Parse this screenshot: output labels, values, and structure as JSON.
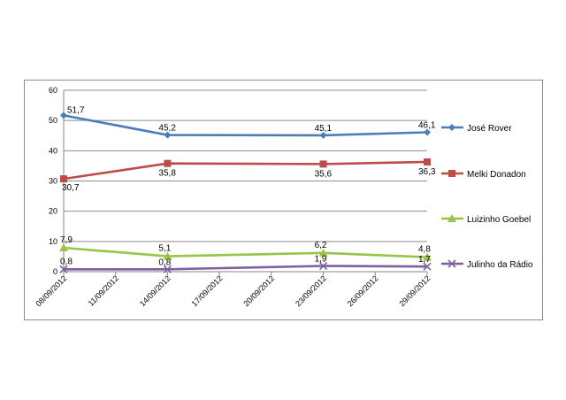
{
  "chart_data": {
    "type": "line",
    "title": "",
    "xlabel": "",
    "ylabel": "",
    "ylim": [
      0,
      60
    ],
    "yticks": [
      0,
      10,
      20,
      30,
      40,
      50,
      60
    ],
    "grid": true,
    "legend_position": "right",
    "x_tick_labels": [
      "08/09/2012",
      "11/09/2012",
      "14/09/2012",
      "17/09/2012",
      "20/09/2012",
      "23/09/2012",
      "26/09/2012",
      "29/09/2012"
    ],
    "series": [
      {
        "name": "José Rover",
        "color": "#4a7ebb",
        "marker": "diamond",
        "points": [
          {
            "x": "08/09/2012",
            "y": 51.7,
            "label": "51,7"
          },
          {
            "x": "14/09/2012",
            "y": 45.2,
            "label": "45,2"
          },
          {
            "x": "23/09/2012",
            "y": 45.1,
            "label": "45,1"
          },
          {
            "x": "29/09/2012",
            "y": 46.1,
            "label": "46,1"
          }
        ]
      },
      {
        "name": "Melki Donadon",
        "color": "#be4b48",
        "marker": "square",
        "points": [
          {
            "x": "08/09/2012",
            "y": 30.7,
            "label": "30,7"
          },
          {
            "x": "14/09/2012",
            "y": 35.8,
            "label": "35,8"
          },
          {
            "x": "23/09/2012",
            "y": 35.6,
            "label": "35,6"
          },
          {
            "x": "29/09/2012",
            "y": 36.3,
            "label": "36,3"
          }
        ]
      },
      {
        "name": "Luizinho Goebel",
        "color": "#98c447",
        "marker": "triangle",
        "points": [
          {
            "x": "08/09/2012",
            "y": 7.9,
            "label": "7,9"
          },
          {
            "x": "14/09/2012",
            "y": 5.1,
            "label": "5,1"
          },
          {
            "x": "23/09/2012",
            "y": 6.2,
            "label": "6,2"
          },
          {
            "x": "29/09/2012",
            "y": 4.8,
            "label": "4,8"
          }
        ]
      },
      {
        "name": "Julinho da Rádio",
        "color": "#7d60a0",
        "marker": "x",
        "points": [
          {
            "x": "08/09/2012",
            "y": 0.8,
            "label": "0,8"
          },
          {
            "x": "14/09/2012",
            "y": 0.8,
            "label": "0,8"
          },
          {
            "x": "23/09/2012",
            "y": 1.9,
            "label": "1,9"
          },
          {
            "x": "29/09/2012",
            "y": 1.7,
            "label": "1,7"
          }
        ]
      }
    ]
  }
}
